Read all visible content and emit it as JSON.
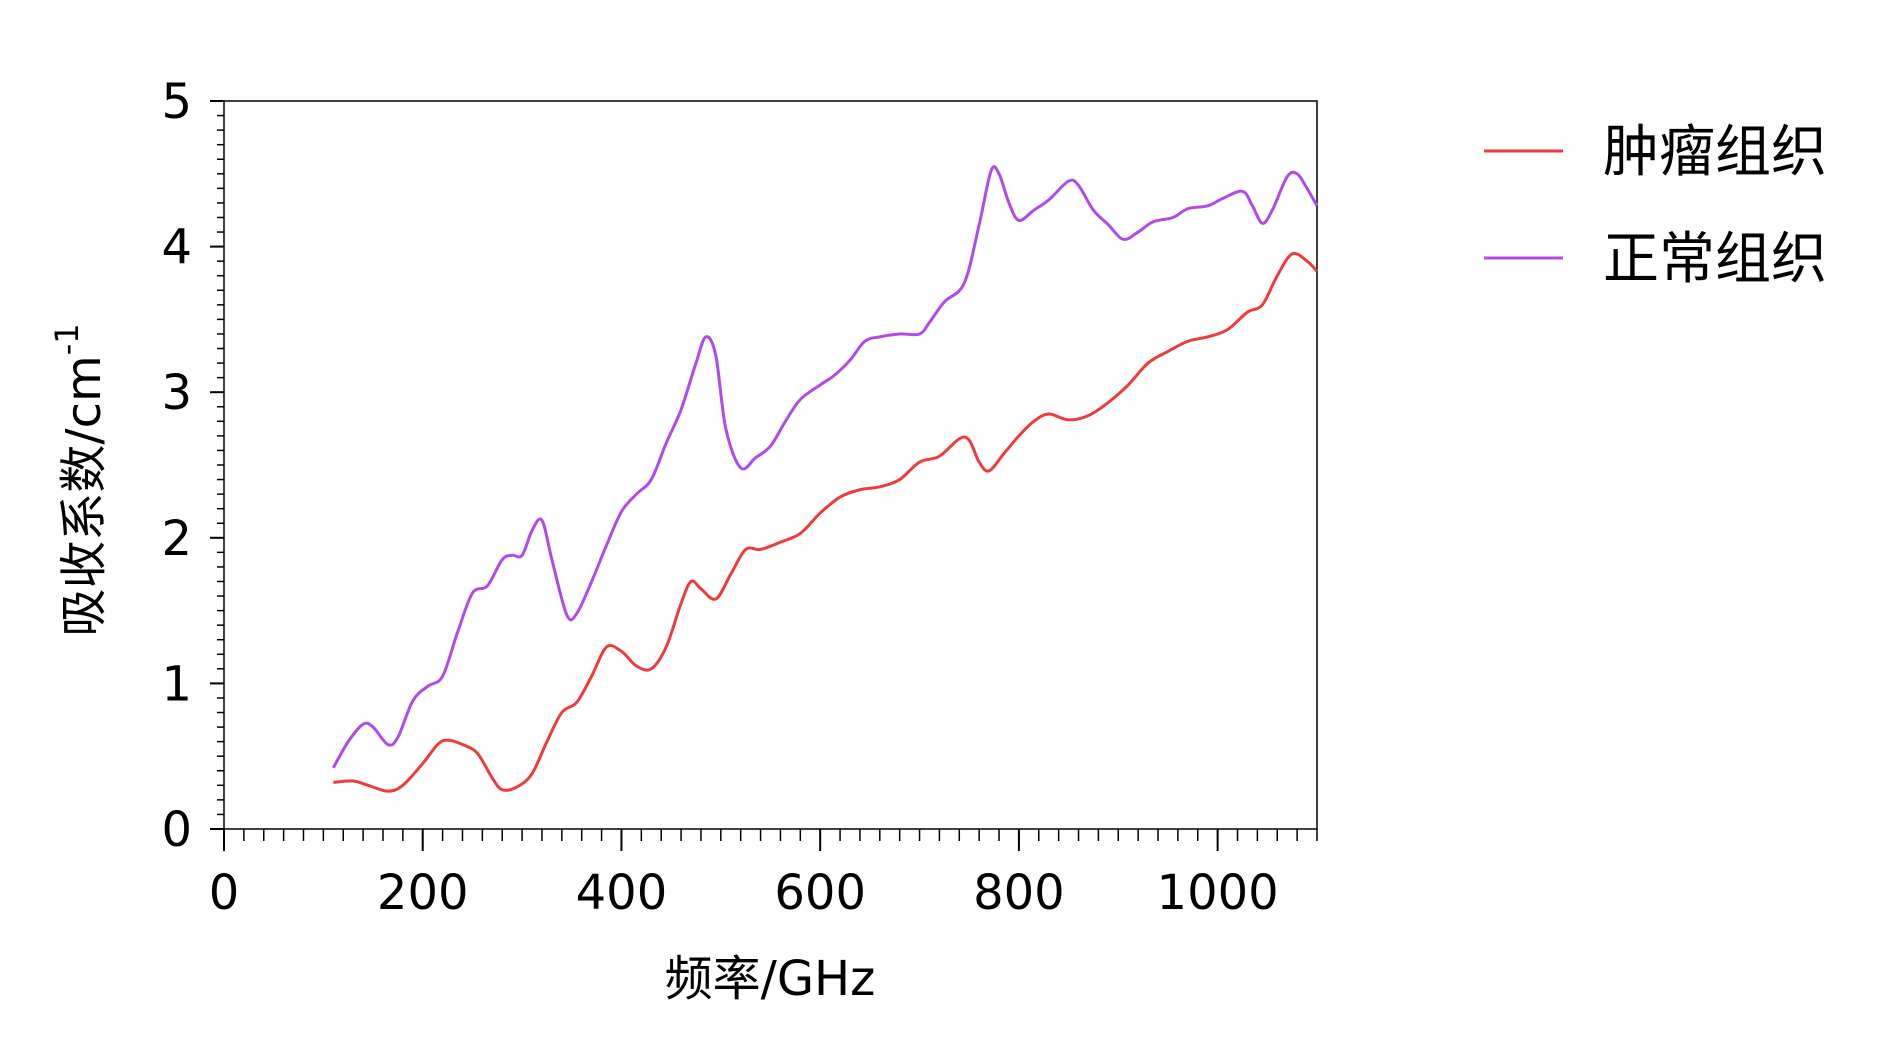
{
  "chart_data": {
    "type": "line",
    "xlabel": "频率/GHz",
    "ylabel": "吸收系数/cm",
    "ylabel_superscript": "-1",
    "xlim": [
      0,
      1100
    ],
    "ylim": [
      0,
      5
    ],
    "xticks": [
      0,
      200,
      400,
      600,
      800,
      1000
    ],
    "yticks": [
      0,
      1,
      2,
      3,
      4,
      5
    ],
    "xminor_step": 20,
    "yminor_step": 0.1,
    "legend": "upper right outside",
    "series": [
      {
        "name": "肿瘤组织",
        "color": "#ee3b3b",
        "x": [
          110,
          130,
          145,
          165,
          180,
          200,
          215,
          225,
          240,
          255,
          270,
          280,
          295,
          310,
          325,
          340,
          355,
          370,
          385,
          400,
          415,
          430,
          445,
          460,
          470,
          480,
          495,
          510,
          525,
          540,
          560,
          580,
          600,
          620,
          640,
          660,
          680,
          700,
          720,
          740,
          750,
          760,
          770,
          785,
          800,
          815,
          830,
          850,
          870,
          890,
          910,
          930,
          950,
          970,
          990,
          1010,
          1030,
          1045,
          1060,
          1075,
          1090,
          1100
        ],
        "values": [
          0.32,
          0.33,
          0.3,
          0.26,
          0.3,
          0.45,
          0.58,
          0.61,
          0.58,
          0.52,
          0.35,
          0.27,
          0.29,
          0.38,
          0.6,
          0.8,
          0.87,
          1.05,
          1.25,
          1.22,
          1.12,
          1.1,
          1.25,
          1.55,
          1.7,
          1.65,
          1.58,
          1.75,
          1.92,
          1.92,
          1.97,
          2.03,
          2.17,
          2.28,
          2.33,
          2.35,
          2.4,
          2.52,
          2.56,
          2.68,
          2.67,
          2.52,
          2.46,
          2.58,
          2.7,
          2.8,
          2.85,
          2.81,
          2.84,
          2.93,
          3.05,
          3.2,
          3.28,
          3.35,
          3.38,
          3.43,
          3.55,
          3.6,
          3.8,
          3.95,
          3.9,
          3.83
        ]
      },
      {
        "name": "正常组织",
        "color": "#b04ae8",
        "x": [
          110,
          125,
          140,
          150,
          165,
          175,
          190,
          205,
          220,
          235,
          250,
          265,
          280,
          290,
          300,
          310,
          320,
          330,
          345,
          355,
          370,
          385,
          400,
          415,
          430,
          445,
          460,
          475,
          485,
          495,
          505,
          520,
          535,
          550,
          565,
          580,
          600,
          615,
          630,
          645,
          660,
          680,
          700,
          710,
          725,
          745,
          760,
          772,
          780,
          790,
          800,
          815,
          830,
          850,
          860,
          875,
          890,
          905,
          920,
          935,
          955,
          970,
          990,
          1005,
          1025,
          1035,
          1045,
          1055,
          1070,
          1080,
          1090,
          1100
        ],
        "values": [
          0.42,
          0.6,
          0.72,
          0.7,
          0.58,
          0.63,
          0.88,
          0.98,
          1.05,
          1.35,
          1.62,
          1.67,
          1.85,
          1.88,
          1.88,
          2.05,
          2.12,
          1.85,
          1.47,
          1.48,
          1.7,
          1.95,
          2.18,
          2.3,
          2.4,
          2.65,
          2.88,
          3.2,
          3.38,
          3.25,
          2.75,
          2.48,
          2.55,
          2.63,
          2.8,
          2.95,
          3.05,
          3.12,
          3.22,
          3.35,
          3.38,
          3.4,
          3.4,
          3.48,
          3.62,
          3.75,
          4.15,
          4.52,
          4.5,
          4.3,
          4.18,
          4.25,
          4.32,
          4.45,
          4.42,
          4.25,
          4.15,
          4.05,
          4.1,
          4.17,
          4.2,
          4.26,
          4.28,
          4.33,
          4.38,
          4.28,
          4.16,
          4.25,
          4.48,
          4.5,
          4.4,
          4.28
        ]
      }
    ]
  }
}
